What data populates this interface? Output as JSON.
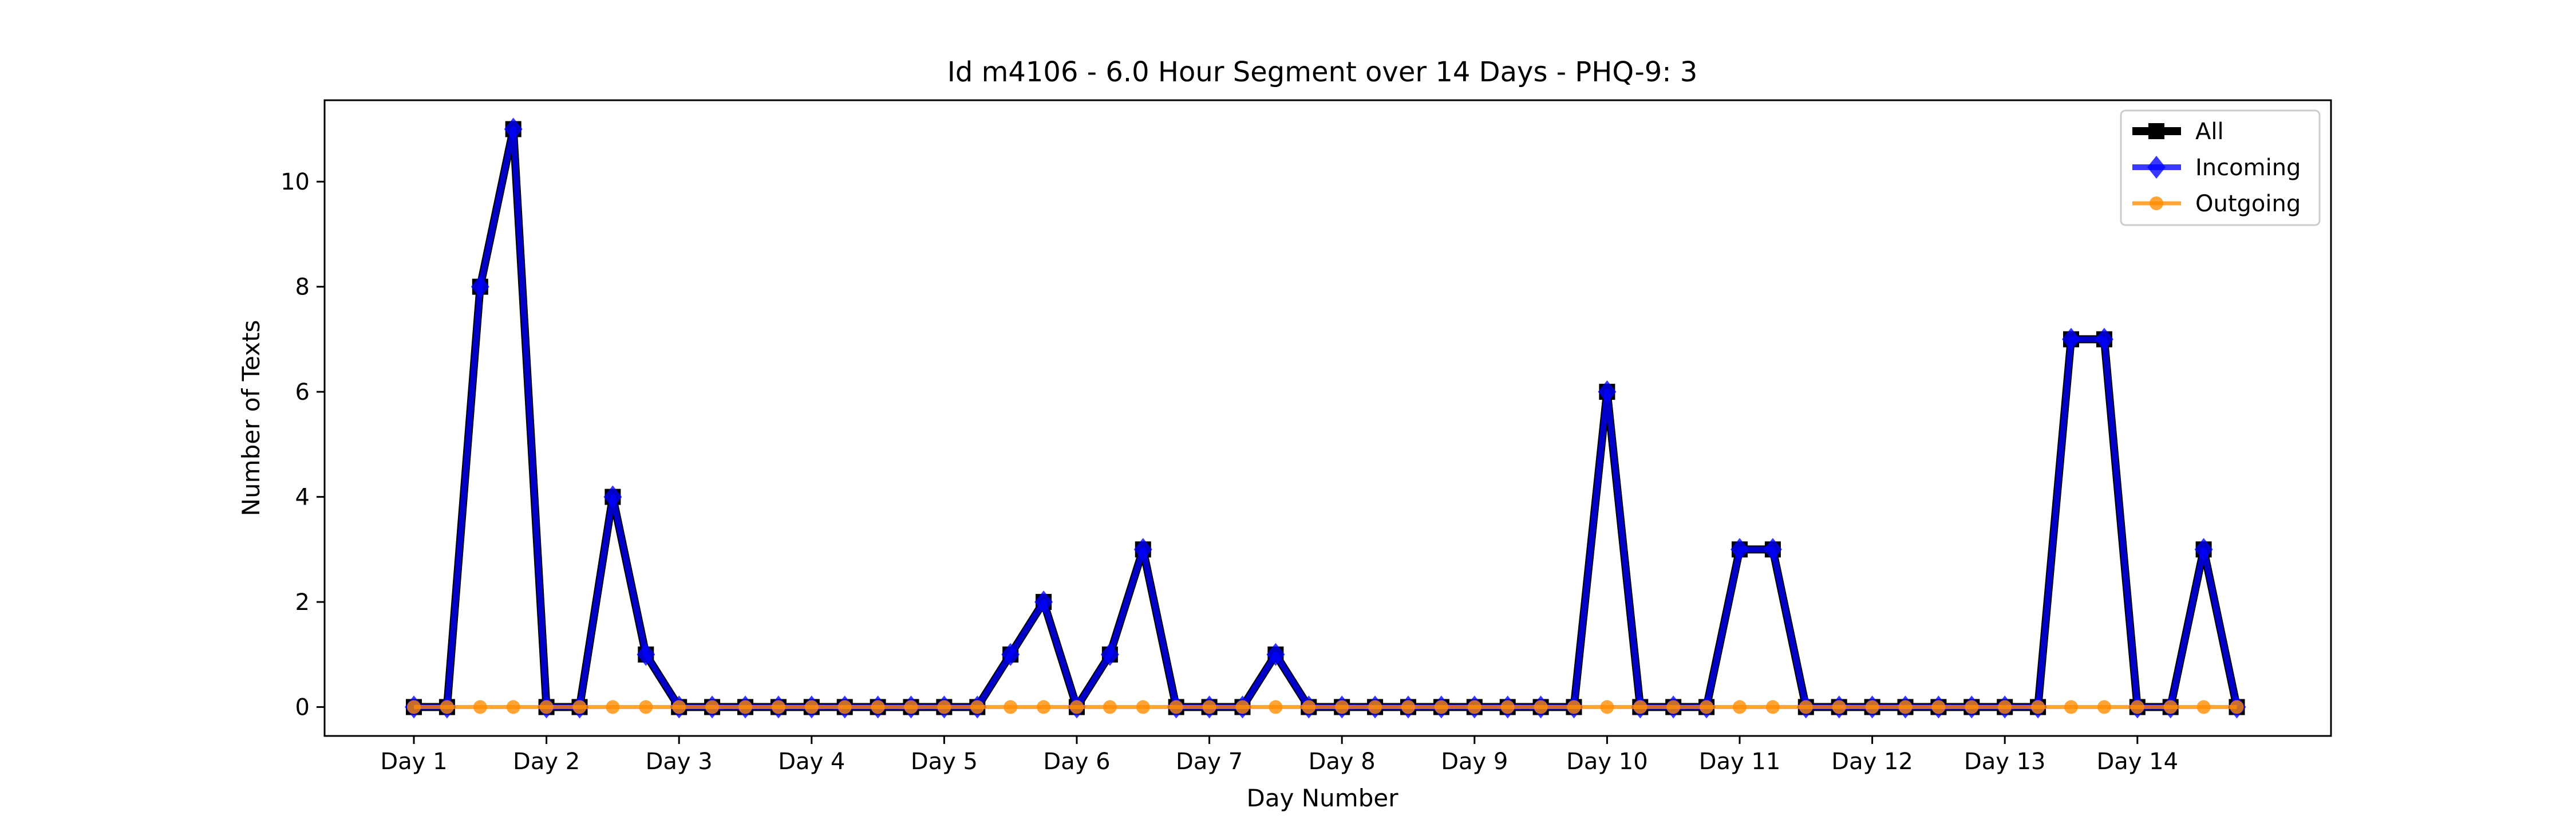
{
  "chart_data": {
    "type": "line",
    "title": "Id m4106 - 6.0 Hour Segment over 14 Days - PHQ-9: 3",
    "xlabel": "Day Number",
    "ylabel": "Number of Texts",
    "x_tick_labels": [
      "Day 1",
      "Day 2",
      "Day 3",
      "Day 4",
      "Day 5",
      "Day 6",
      "Day 7",
      "Day 8",
      "Day 9",
      "Day 10",
      "Day 11",
      "Day 12",
      "Day 13",
      "Day 14"
    ],
    "y_tick_labels": [
      "0",
      "2",
      "4",
      "6",
      "8",
      "10"
    ],
    "ylim": [
      -0.55,
      11.55
    ],
    "grid": false,
    "legend_position": "top-right",
    "series": [
      {
        "name": "All",
        "color": "#000000",
        "marker": "square",
        "values": [
          0,
          0,
          8,
          11,
          0,
          0,
          4,
          1,
          0,
          0,
          0,
          0,
          0,
          0,
          0,
          0,
          0,
          0,
          1,
          2,
          0,
          1,
          3,
          0,
          0,
          0,
          1,
          0,
          0,
          0,
          0,
          0,
          0,
          0,
          0,
          0,
          6,
          0,
          0,
          0,
          3,
          3,
          0,
          0,
          0,
          0,
          0,
          0,
          0,
          0,
          7,
          7,
          0,
          0,
          3,
          0
        ]
      },
      {
        "name": "Incoming",
        "color": "#0000ff",
        "marker": "diamond",
        "values": [
          0,
          0,
          8,
          11,
          0,
          0,
          4,
          1,
          0,
          0,
          0,
          0,
          0,
          0,
          0,
          0,
          0,
          0,
          1,
          2,
          0,
          1,
          3,
          0,
          0,
          0,
          1,
          0,
          0,
          0,
          0,
          0,
          0,
          0,
          0,
          0,
          6,
          0,
          0,
          0,
          3,
          3,
          0,
          0,
          0,
          0,
          0,
          0,
          0,
          0,
          7,
          7,
          0,
          0,
          3,
          0
        ]
      },
      {
        "name": "Outgoing",
        "color": "#ff8c00",
        "marker": "circle",
        "values": [
          0,
          0,
          0,
          0,
          0,
          0,
          0,
          0,
          0,
          0,
          0,
          0,
          0,
          0,
          0,
          0,
          0,
          0,
          0,
          0,
          0,
          0,
          0,
          0,
          0,
          0,
          0,
          0,
          0,
          0,
          0,
          0,
          0,
          0,
          0,
          0,
          0,
          0,
          0,
          0,
          0,
          0,
          0,
          0,
          0,
          0,
          0,
          0,
          0,
          0,
          0,
          0,
          0,
          0,
          0,
          0
        ]
      }
    ]
  }
}
